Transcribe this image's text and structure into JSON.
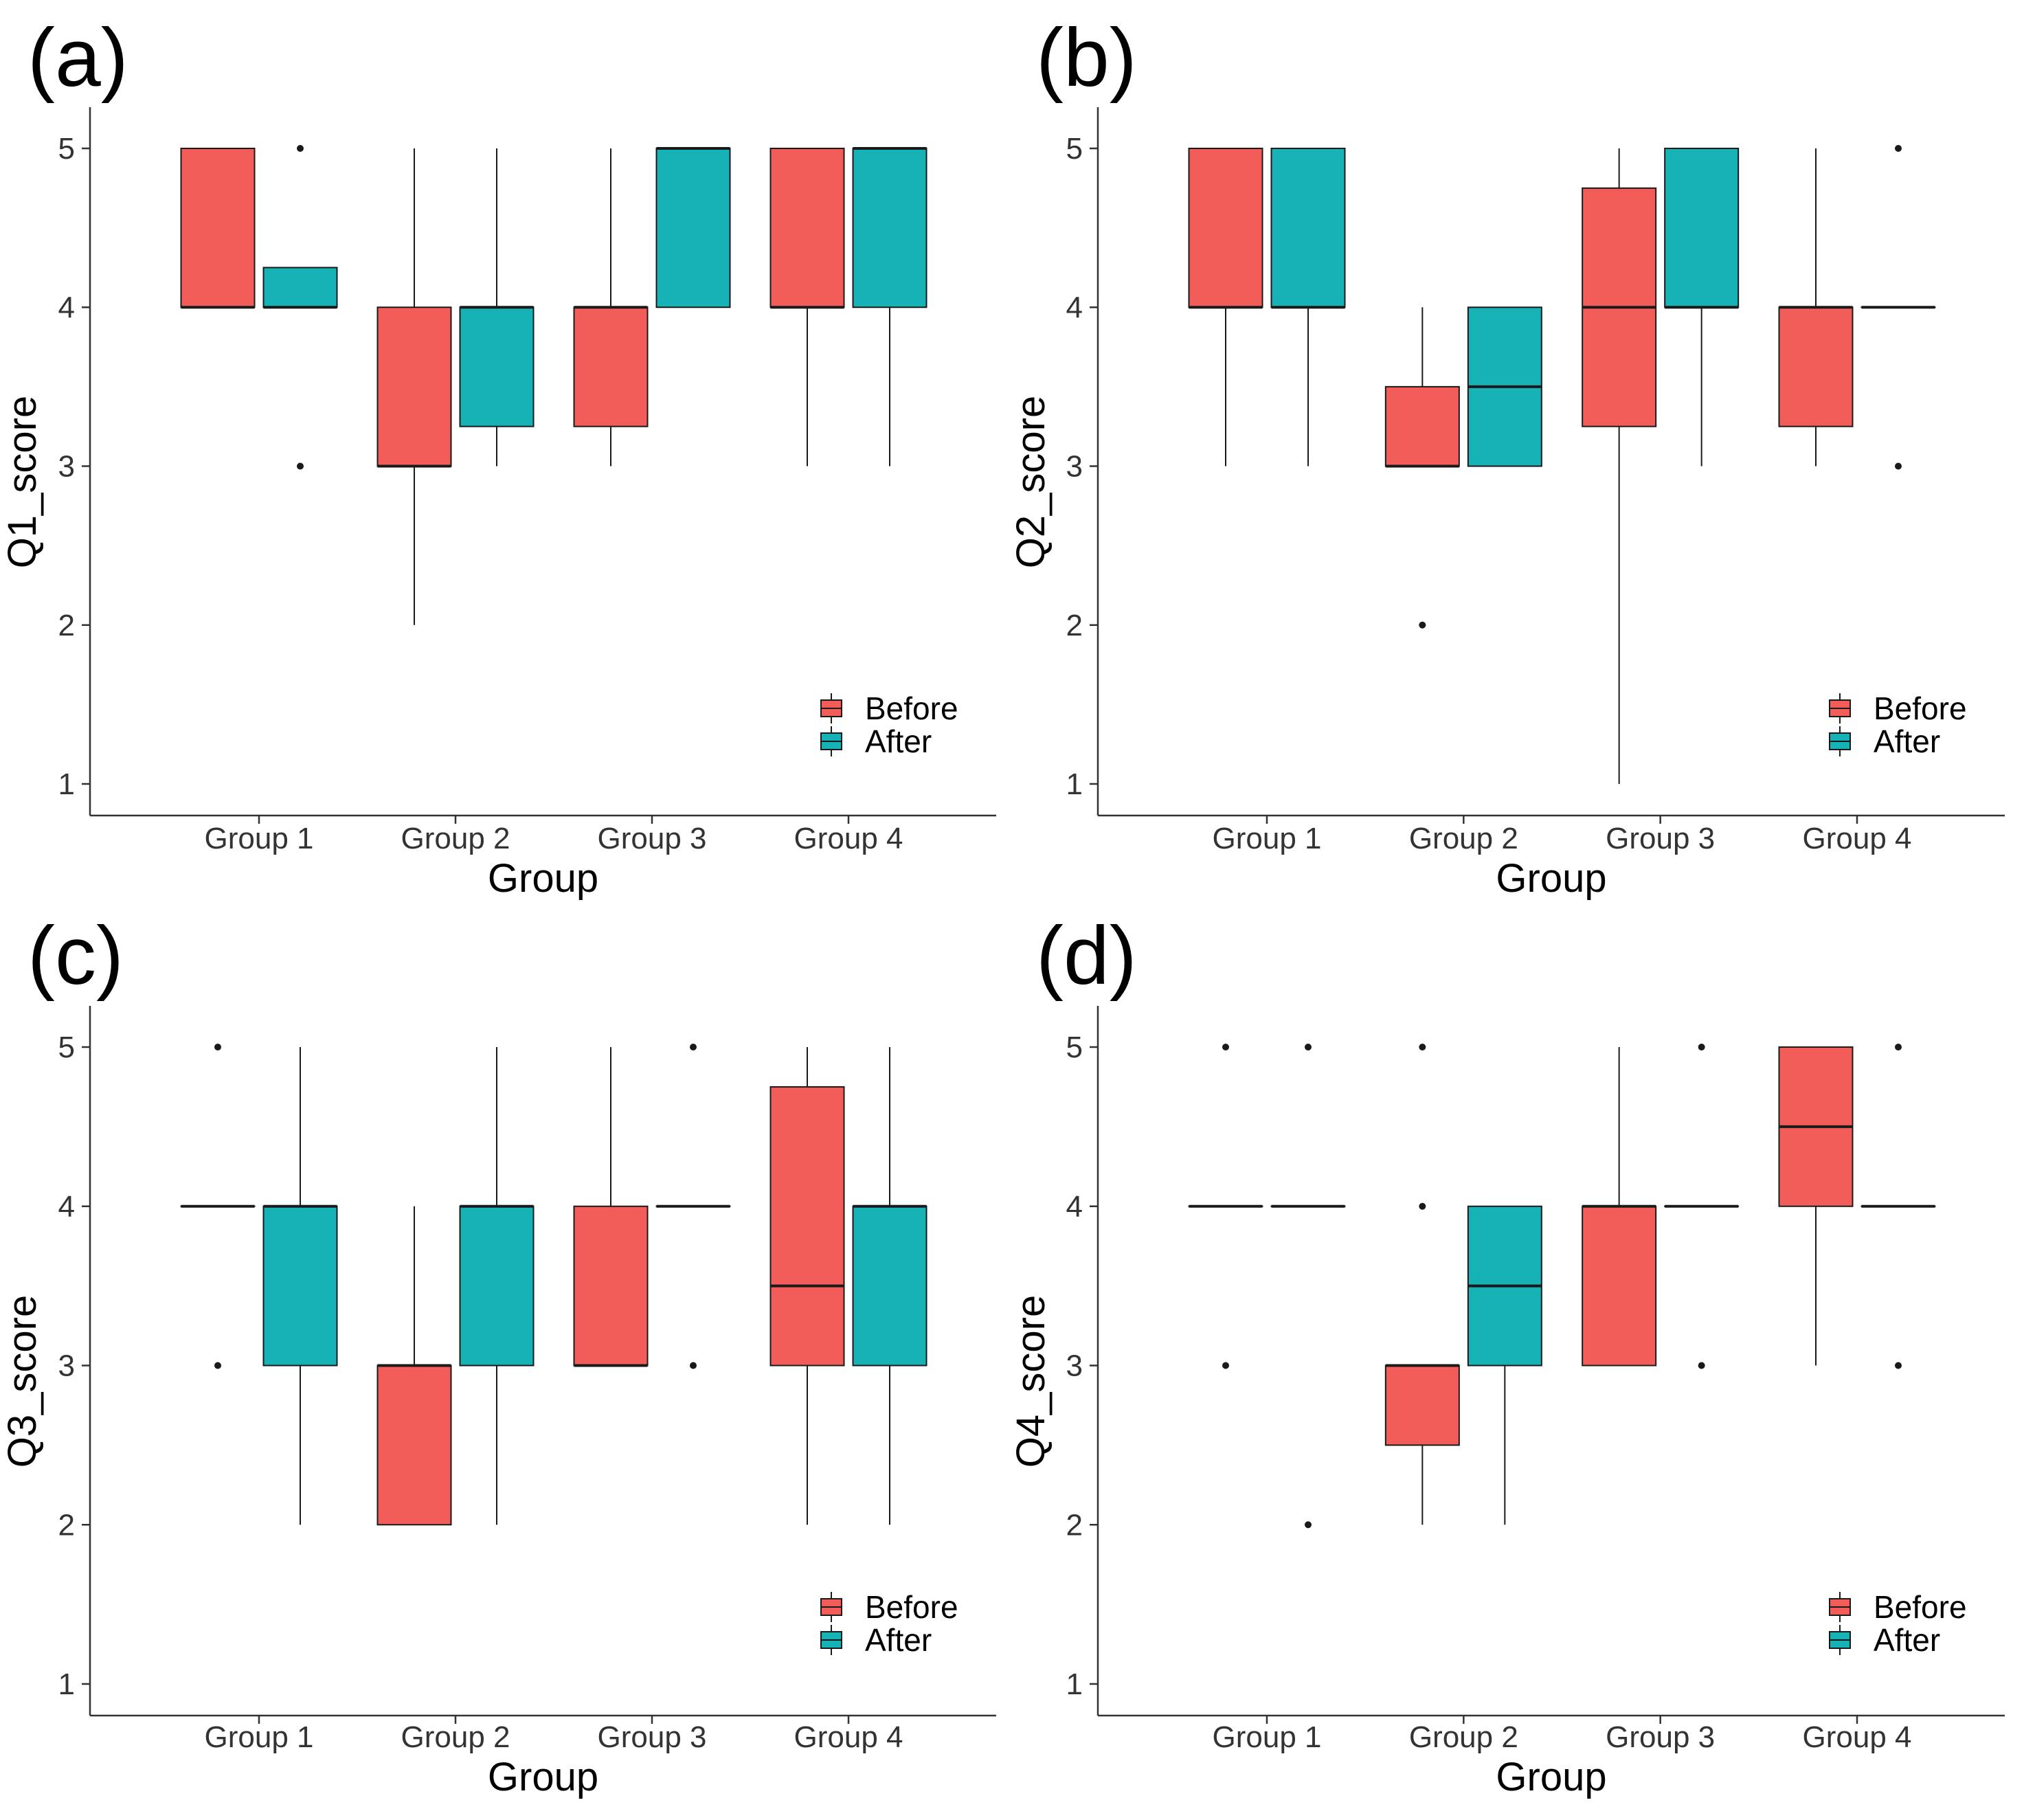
{
  "colors": {
    "before": "#F25D5A",
    "after": "#17B2B5",
    "ink": "#1a1a1a"
  },
  "legend": [
    "Before",
    "After"
  ],
  "chart_data": [
    {
      "type": "boxplot",
      "panel_label": "(a)",
      "xlabel": "Group",
      "ylabel": "Q1_score",
      "ylim": [
        1,
        5
      ],
      "yticks": [
        "1",
        "2",
        "3",
        "4",
        "5"
      ],
      "categories": [
        "Group 1",
        "Group 2",
        "Group 3",
        "Group 4"
      ],
      "series": [
        {
          "name": "Before",
          "boxes": [
            {
              "lower_whisker": 4,
              "q1": 4,
              "median": 4,
              "q3": 5,
              "upper_whisker": 5,
              "outliers": []
            },
            {
              "lower_whisker": 2,
              "q1": 3,
              "median": 3,
              "q3": 4,
              "upper_whisker": 5,
              "outliers": []
            },
            {
              "lower_whisker": 3,
              "q1": 3.25,
              "median": 4,
              "q3": 4,
              "upper_whisker": 5,
              "outliers": []
            },
            {
              "lower_whisker": 3,
              "q1": 4,
              "median": 4,
              "q3": 5,
              "upper_whisker": 5,
              "outliers": []
            }
          ]
        },
        {
          "name": "After",
          "boxes": [
            {
              "lower_whisker": 4,
              "q1": 4,
              "median": 4,
              "q3": 4.25,
              "upper_whisker": 4.25,
              "outliers": [
                3,
                5
              ]
            },
            {
              "lower_whisker": 3,
              "q1": 3.25,
              "median": 4,
              "q3": 4,
              "upper_whisker": 5,
              "outliers": []
            },
            {
              "lower_whisker": 4,
              "q1": 4,
              "median": 5,
              "q3": 5,
              "upper_whisker": 5,
              "outliers": []
            },
            {
              "lower_whisker": 3,
              "q1": 4,
              "median": 5,
              "q3": 5,
              "upper_whisker": 5,
              "outliers": []
            }
          ]
        }
      ]
    },
    {
      "type": "boxplot",
      "panel_label": "(b)",
      "xlabel": "Group",
      "ylabel": "Q2_score",
      "ylim": [
        1,
        5
      ],
      "yticks": [
        "1",
        "2",
        "3",
        "4",
        "5"
      ],
      "categories": [
        "Group 1",
        "Group 2",
        "Group 3",
        "Group 4"
      ],
      "series": [
        {
          "name": "Before",
          "boxes": [
            {
              "lower_whisker": 3,
              "q1": 4,
              "median": 4,
              "q3": 5,
              "upper_whisker": 5,
              "outliers": []
            },
            {
              "lower_whisker": 3,
              "q1": 3,
              "median": 3,
              "q3": 3.5,
              "upper_whisker": 4,
              "outliers": [
                2
              ]
            },
            {
              "lower_whisker": 1,
              "q1": 3.25,
              "median": 4,
              "q3": 4.75,
              "upper_whisker": 5,
              "outliers": []
            },
            {
              "lower_whisker": 3,
              "q1": 3.25,
              "median": 4,
              "q3": 4,
              "upper_whisker": 5,
              "outliers": []
            }
          ]
        },
        {
          "name": "After",
          "boxes": [
            {
              "lower_whisker": 3,
              "q1": 4,
              "median": 4,
              "q3": 5,
              "upper_whisker": 5,
              "outliers": []
            },
            {
              "lower_whisker": 3,
              "q1": 3,
              "median": 3.5,
              "q3": 4,
              "upper_whisker": 4,
              "outliers": []
            },
            {
              "lower_whisker": 3,
              "q1": 4,
              "median": 4,
              "q3": 5,
              "upper_whisker": 5,
              "outliers": []
            },
            {
              "lower_whisker": 4,
              "q1": 4,
              "median": 4,
              "q3": 4,
              "upper_whisker": 4,
              "outliers": [
                3,
                5
              ]
            }
          ]
        }
      ]
    },
    {
      "type": "boxplot",
      "panel_label": "(c)",
      "xlabel": "Group",
      "ylabel": "Q3_score",
      "ylim": [
        1,
        5
      ],
      "yticks": [
        "1",
        "2",
        "3",
        "4",
        "5"
      ],
      "categories": [
        "Group 1",
        "Group 2",
        "Group 3",
        "Group 4"
      ],
      "series": [
        {
          "name": "Before",
          "boxes": [
            {
              "lower_whisker": 4,
              "q1": 4,
              "median": 4,
              "q3": 4,
              "upper_whisker": 4,
              "outliers": [
                3,
                5
              ]
            },
            {
              "lower_whisker": 2,
              "q1": 2,
              "median": 3,
              "q3": 3,
              "upper_whisker": 4,
              "outliers": []
            },
            {
              "lower_whisker": 3,
              "q1": 3,
              "median": 3,
              "q3": 4,
              "upper_whisker": 5,
              "outliers": []
            },
            {
              "lower_whisker": 2,
              "q1": 3,
              "median": 3.5,
              "q3": 4.75,
              "upper_whisker": 5,
              "outliers": []
            }
          ]
        },
        {
          "name": "After",
          "boxes": [
            {
              "lower_whisker": 2,
              "q1": 3,
              "median": 4,
              "q3": 4,
              "upper_whisker": 5,
              "outliers": []
            },
            {
              "lower_whisker": 2,
              "q1": 3,
              "median": 4,
              "q3": 4,
              "upper_whisker": 5,
              "outliers": []
            },
            {
              "lower_whisker": 4,
              "q1": 4,
              "median": 4,
              "q3": 4,
              "upper_whisker": 4,
              "outliers": [
                3,
                5
              ]
            },
            {
              "lower_whisker": 2,
              "q1": 3,
              "median": 4,
              "q3": 4,
              "upper_whisker": 5,
              "outliers": []
            }
          ]
        }
      ]
    },
    {
      "type": "boxplot",
      "panel_label": "(d)",
      "xlabel": "Group",
      "ylabel": "Q4_score",
      "ylim": [
        1,
        5
      ],
      "yticks": [
        "1",
        "2",
        "3",
        "4",
        "5"
      ],
      "categories": [
        "Group 1",
        "Group 2",
        "Group 3",
        "Group 4"
      ],
      "series": [
        {
          "name": "Before",
          "boxes": [
            {
              "lower_whisker": 4,
              "q1": 4,
              "median": 4,
              "q3": 4,
              "upper_whisker": 4,
              "outliers": [
                3,
                5
              ]
            },
            {
              "lower_whisker": 2,
              "q1": 2.5,
              "median": 3,
              "q3": 3,
              "upper_whisker": 3,
              "outliers": [
                4,
                5
              ]
            },
            {
              "lower_whisker": 3,
              "q1": 3,
              "median": 4,
              "q3": 4,
              "upper_whisker": 5,
              "outliers": []
            },
            {
              "lower_whisker": 3,
              "q1": 4,
              "median": 4.5,
              "q3": 5,
              "upper_whisker": 5,
              "outliers": []
            }
          ]
        },
        {
          "name": "After",
          "boxes": [
            {
              "lower_whisker": 4,
              "q1": 4,
              "median": 4,
              "q3": 4,
              "upper_whisker": 4,
              "outliers": [
                2,
                5
              ]
            },
            {
              "lower_whisker": 2,
              "q1": 3,
              "median": 3.5,
              "q3": 4,
              "upper_whisker": 4,
              "outliers": []
            },
            {
              "lower_whisker": 4,
              "q1": 4,
              "median": 4,
              "q3": 4,
              "upper_whisker": 4,
              "outliers": [
                3,
                5
              ]
            },
            {
              "lower_whisker": 4,
              "q1": 4,
              "median": 4,
              "q3": 4,
              "upper_whisker": 4,
              "outliers": [
                3,
                5
              ]
            }
          ]
        }
      ]
    }
  ]
}
